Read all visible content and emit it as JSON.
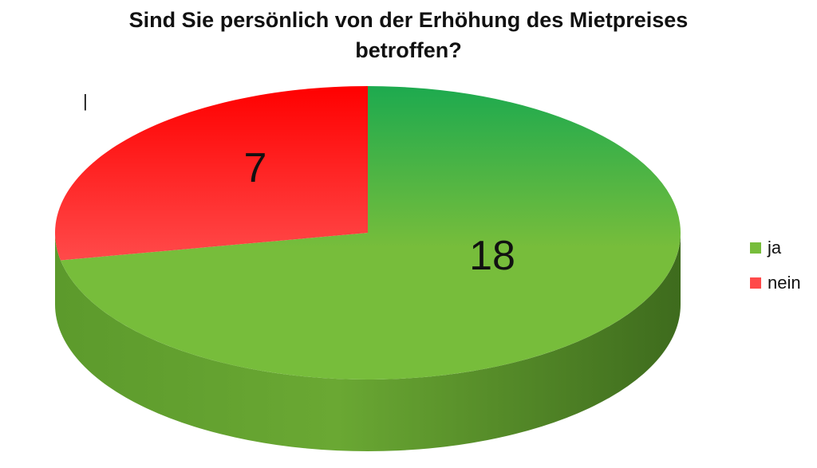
{
  "chart_data": {
    "type": "pie",
    "title_lines": [
      "Sind Sie persönlich von der Erhöhung des Mietpreises",
      "betroffen?"
    ],
    "categories": [
      "ja",
      "nein"
    ],
    "values": [
      18,
      7
    ],
    "data_labels": [
      "18",
      "7"
    ],
    "colors": {
      "ja": "#77bd3b",
      "ja_top": "#1daa4f",
      "ja_side": "#3e6b1d",
      "nein": "#ff4a4a",
      "nein_top": "#ff0000"
    },
    "legend_position": "right",
    "three_d": true,
    "stray_text": "|"
  }
}
